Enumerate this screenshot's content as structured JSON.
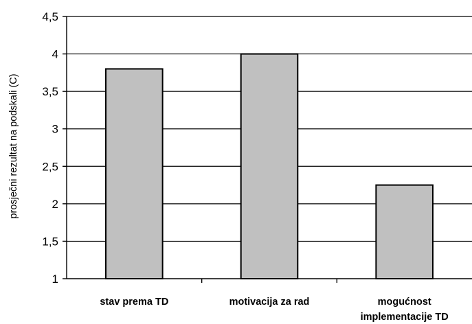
{
  "chart_data": {
    "type": "bar",
    "categories": [
      [
        "stav prema TD"
      ],
      [
        "motivacija za rad"
      ],
      [
        "mogućnost",
        "implementacije TD"
      ]
    ],
    "values": [
      3.8,
      4.0,
      2.25
    ],
    "ylabel": "prosječni rezultat na podskali (C)",
    "ylim": [
      1,
      4.5
    ],
    "yticks": [
      "1",
      "1,5",
      "2",
      "2,5",
      "3",
      "3,5",
      "4",
      "4,5"
    ],
    "grid": true,
    "colors": {
      "bar": "#c0c0c0",
      "edge": "#000000"
    }
  }
}
